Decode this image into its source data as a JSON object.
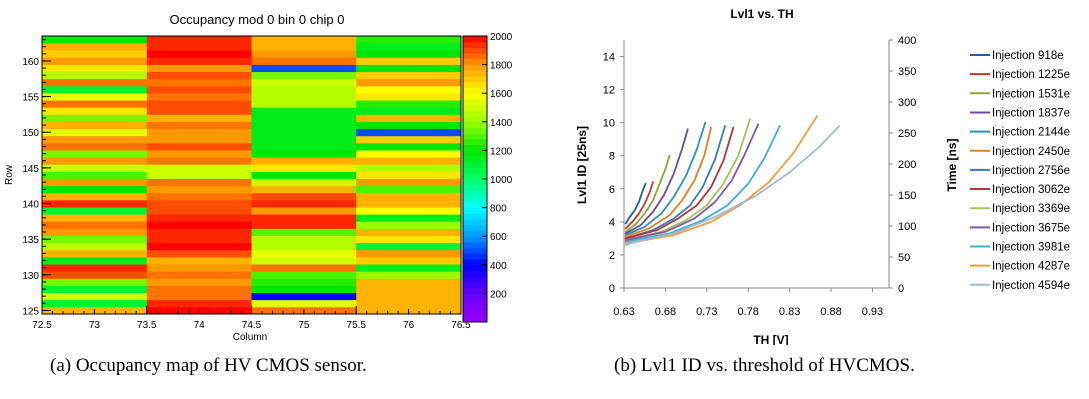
{
  "chart_data": [
    {
      "type": "heatmap",
      "title": "Occupancy mod 0 bin 0 chip 0",
      "xlabel": "Column",
      "ylabel": "Row",
      "xlim": [
        72.5,
        76.5
      ],
      "ylim": [
        124.5,
        163.5
      ],
      "xticks": [
        "72.5",
        "73",
        "73.5",
        "74",
        "74.5",
        "75",
        "75.5",
        "76",
        "76.5"
      ],
      "yticks": [
        "125",
        "130",
        "135",
        "140",
        "145",
        "150",
        "155",
        "160"
      ],
      "zlim": [
        0,
        2000
      ],
      "colorbar_ticks": [
        "200",
        "400",
        "600",
        "800",
        "1000",
        "1200",
        "1400",
        "1600",
        "1800",
        "2000"
      ],
      "columns": [
        73,
        74,
        75,
        76
      ],
      "rows": [
        125,
        126,
        127,
        128,
        129,
        130,
        131,
        132,
        133,
        134,
        135,
        136,
        137,
        138,
        139,
        140,
        141,
        142,
        143,
        144,
        145,
        146,
        147,
        148,
        149,
        150,
        151,
        152,
        153,
        154,
        155,
        156,
        157,
        158,
        159,
        160,
        161,
        162,
        163
      ],
      "values": [
        [
          1750,
          2000,
          1850,
          1750
        ],
        [
          1100,
          1950,
          1550,
          1750
        ],
        [
          1500,
          1850,
          400,
          1750
        ],
        [
          1100,
          1850,
          1200,
          1750
        ],
        [
          1350,
          1800,
          1250,
          1750
        ],
        [
          1900,
          1850,
          1300,
          1400
        ],
        [
          1950,
          1800,
          1850,
          1150
        ],
        [
          1150,
          1750,
          1500,
          1700
        ],
        [
          1750,
          1900,
          1550,
          1800
        ],
        [
          1450,
          2000,
          1450,
          1100
        ],
        [
          1350,
          1950,
          1450,
          1650
        ],
        [
          1800,
          1950,
          1300,
          1750
        ],
        [
          1850,
          2000,
          1950,
          1400
        ],
        [
          1750,
          1950,
          1950,
          1150
        ],
        [
          1100,
          1900,
          1800,
          1600
        ],
        [
          1950,
          1900,
          1950,
          1750
        ],
        [
          1750,
          1850,
          1900,
          1750
        ],
        [
          1200,
          1800,
          1750,
          1300
        ],
        [
          1800,
          1850,
          1500,
          1800
        ],
        [
          1300,
          1500,
          1200,
          1650
        ],
        [
          1500,
          1500,
          1650,
          1450
        ],
        [
          1800,
          1850,
          1750,
          1750
        ],
        [
          1350,
          1800,
          1200,
          1600
        ],
        [
          1850,
          1900,
          1150,
          1200
        ],
        [
          1800,
          1800,
          1150,
          1700
        ],
        [
          1550,
          1800,
          1150,
          500
        ],
        [
          1750,
          1850,
          1150,
          1200
        ],
        [
          1350,
          1750,
          1150,
          1750
        ],
        [
          1650,
          1900,
          1150,
          1150
        ],
        [
          1850,
          1900,
          1450,
          1250
        ],
        [
          1550,
          1850,
          1450,
          1650
        ],
        [
          1100,
          1900,
          1450,
          1600
        ],
        [
          1850,
          1850,
          1500,
          1800
        ],
        [
          1450,
          1900,
          1350,
          1700
        ],
        [
          1650,
          1800,
          500,
          1200
        ],
        [
          1800,
          1950,
          1850,
          1700
        ],
        [
          1700,
          2000,
          1800,
          1200
        ],
        [
          1750,
          1950,
          1750,
          1150
        ],
        [
          1200,
          1950,
          1750,
          1250
        ]
      ]
    },
    {
      "type": "line",
      "title": "Lvl1 vs. TH",
      "xlabel": "TH [V]",
      "ylabel": "Lvl1 ID [25ns]",
      "y2label": "Time [ns]",
      "xlim": [
        0.63,
        0.95
      ],
      "ylim": [
        0,
        15
      ],
      "y2lim": [
        0,
        400
      ],
      "xticks": [
        "0.63",
        "0.68",
        "0.73",
        "0.78",
        "0.83",
        "0.88",
        "0.93"
      ],
      "yticks": [
        "0",
        "2",
        "4",
        "6",
        "8",
        "10",
        "12",
        "14"
      ],
      "y2ticks": [
        "0",
        "50",
        "100",
        "150",
        "200",
        "250",
        "300",
        "350",
        "400"
      ],
      "legend_position": "right",
      "grid": false,
      "series": [
        {
          "name": "Injection 918e",
          "color": "#1f5fa6",
          "x": [
            0.632,
            0.637,
            0.643,
            0.648,
            0.652,
            0.656
          ],
          "y": [
            3.9,
            4.3,
            4.7,
            5.2,
            5.8,
            6.3
          ]
        },
        {
          "name": "Injection 1225e",
          "color": "#c0392b",
          "x": [
            0.632,
            0.64,
            0.648,
            0.655,
            0.661,
            0.665
          ],
          "y": [
            3.6,
            4.0,
            4.5,
            5.1,
            5.8,
            6.4
          ]
        },
        {
          "name": "Injection 1531e",
          "color": "#8aa834",
          "x": [
            0.632,
            0.645,
            0.655,
            0.665,
            0.673,
            0.68,
            0.685
          ],
          "y": [
            3.4,
            3.9,
            4.5,
            5.3,
            6.3,
            7.2,
            8.0
          ]
        },
        {
          "name": "Injection 1837e",
          "color": "#6a4a9c",
          "x": [
            0.632,
            0.65,
            0.665,
            0.678,
            0.69,
            0.7,
            0.707
          ],
          "y": [
            3.3,
            3.8,
            4.6,
            5.6,
            6.9,
            8.4,
            9.6
          ]
        },
        {
          "name": "Injection 2144e",
          "color": "#2a94b5",
          "x": [
            0.632,
            0.655,
            0.675,
            0.69,
            0.705,
            0.718,
            0.728
          ],
          "y": [
            3.2,
            3.7,
            4.5,
            5.5,
            6.8,
            8.4,
            10.0
          ]
        },
        {
          "name": "Injection 2450e",
          "color": "#e67e22",
          "x": [
            0.632,
            0.66,
            0.685,
            0.7,
            0.715,
            0.727,
            0.735
          ],
          "y": [
            3.1,
            3.6,
            4.4,
            5.3,
            6.5,
            8.0,
            9.7
          ]
        },
        {
          "name": "Injection 2756e",
          "color": "#3c78c8",
          "x": [
            0.632,
            0.665,
            0.69,
            0.71,
            0.725,
            0.74,
            0.752
          ],
          "y": [
            3.0,
            3.5,
            4.2,
            5.0,
            6.1,
            7.8,
            9.8
          ]
        },
        {
          "name": "Injection 3062e",
          "color": "#b3343a",
          "x": [
            0.632,
            0.67,
            0.695,
            0.718,
            0.735,
            0.75,
            0.762
          ],
          "y": [
            3.0,
            3.5,
            4.2,
            5.0,
            6.1,
            7.7,
            9.7
          ]
        },
        {
          "name": "Injection 3369e",
          "color": "#a3c25a",
          "x": [
            0.632,
            0.675,
            0.705,
            0.73,
            0.75,
            0.768,
            0.782
          ],
          "y": [
            2.9,
            3.4,
            4.1,
            5.0,
            6.3,
            8.0,
            10.2
          ]
        },
        {
          "name": "Injection 3675e",
          "color": "#7d5aa6",
          "x": [
            0.632,
            0.68,
            0.715,
            0.74,
            0.76,
            0.775,
            0.792
          ],
          "y": [
            2.9,
            3.4,
            4.2,
            5.2,
            6.5,
            8.0,
            9.9
          ]
        },
        {
          "name": "Injection 3981e",
          "color": "#3fb0cf",
          "x": [
            0.632,
            0.685,
            0.725,
            0.755,
            0.78,
            0.8,
            0.818
          ],
          "y": [
            2.8,
            3.3,
            4.1,
            5.0,
            6.3,
            7.9,
            9.8
          ]
        },
        {
          "name": "Injection 4287e",
          "color": "#f39c3d",
          "x": [
            0.632,
            0.69,
            0.735,
            0.77,
            0.805,
            0.835,
            0.863
          ],
          "y": [
            2.7,
            3.2,
            4.0,
            5.0,
            6.4,
            8.2,
            10.4
          ]
        },
        {
          "name": "Injection 4594e",
          "color": "#a4b8d6",
          "x": [
            0.632,
            0.645,
            0.69,
            0.74,
            0.79,
            0.83,
            0.865,
            0.89
          ],
          "y": [
            2.6,
            2.8,
            3.3,
            4.3,
            5.6,
            7.0,
            8.5,
            9.8
          ]
        }
      ]
    }
  ],
  "captions": {
    "a": "(a) Occupancy map of HV CMOS sensor.",
    "b": "(b) Lvl1 ID vs. threshold of HVCMOS."
  }
}
